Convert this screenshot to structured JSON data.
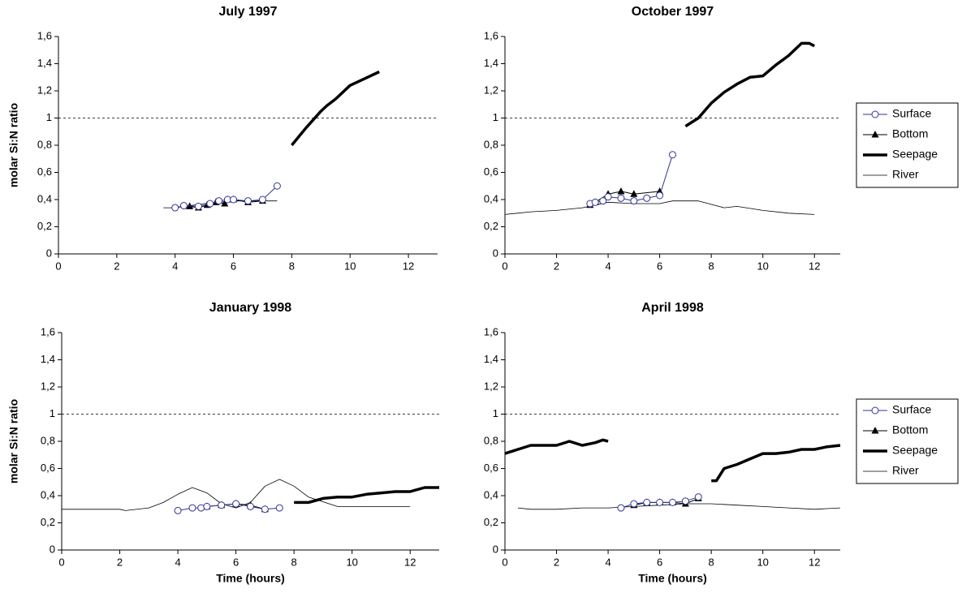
{
  "chart_data": [
    {
      "type": "line",
      "title": "July 1997",
      "y_label": "molar Si:N ratio",
      "xlim": [
        0,
        13
      ],
      "xticks": [
        0,
        2,
        4,
        6,
        8,
        10,
        12
      ],
      "ylim": [
        0,
        1.6
      ],
      "yticks": [
        0,
        {
          "value": 0.2,
          "label": "0,2"
        },
        {
          "value": 0.4,
          "label": "0,4"
        },
        {
          "value": 0.6,
          "label": "0,6"
        },
        {
          "value": 0.8,
          "label": "0,8"
        },
        1,
        {
          "value": 1.2,
          "label": "1,2"
        },
        {
          "value": 1.4,
          "label": "1,4"
        },
        {
          "value": 1.6,
          "label": "1,6"
        }
      ],
      "reference_line": 1,
      "series": [
        {
          "name": "Surface",
          "color": "#333399",
          "marker": "circle",
          "line": "thin",
          "x": [
            4.0,
            4.3,
            4.8,
            5.2,
            5.5,
            5.8,
            6.0,
            6.5,
            7.0,
            7.5
          ],
          "values": [
            0.34,
            0.355,
            0.35,
            0.37,
            0.39,
            0.4,
            0.4,
            0.39,
            0.4,
            0.5
          ]
        },
        {
          "name": "Bottom",
          "color": "#000000",
          "marker": "triangle",
          "line": "thin",
          "x": [
            4.5,
            4.8,
            5.1,
            5.4,
            5.7,
            5.8,
            6.0,
            6.5,
            7.0
          ],
          "values": [
            0.35,
            0.34,
            0.36,
            0.38,
            0.37,
            0.4,
            0.4,
            0.38,
            0.39
          ]
        },
        {
          "name": "Seepage",
          "color": "#000000",
          "marker": "none",
          "line": "thick",
          "x": [
            8.0,
            8.5,
            9.0,
            9.2,
            9.5,
            10.0,
            10.5,
            11.0
          ],
          "values": [
            0.8,
            0.93,
            1.05,
            1.09,
            1.14,
            1.24,
            1.29,
            1.34
          ]
        },
        {
          "name": "River",
          "color": "#000000",
          "marker": "none",
          "line": "hair",
          "x": [
            3.6,
            4.0,
            5.0,
            6.0,
            7.0,
            7.5
          ],
          "values": [
            0.34,
            0.34,
            0.37,
            0.39,
            0.39,
            0.39
          ]
        }
      ]
    },
    {
      "type": "line",
      "title": "October 1997",
      "legend": "right",
      "xlim": [
        0,
        13
      ],
      "xticks": [
        0,
        2,
        4,
        6,
        8,
        10,
        12
      ],
      "ylim": [
        0,
        1.6
      ],
      "yticks": [
        0,
        {
          "value": 0.2,
          "label": "0,2"
        },
        {
          "value": 0.4,
          "label": "0,4"
        },
        {
          "value": 0.6,
          "label": "0,6"
        },
        {
          "value": 0.8,
          "label": "0,8"
        },
        1,
        {
          "value": 1.2,
          "label": "1,2"
        },
        {
          "value": 1.4,
          "label": "1,4"
        },
        {
          "value": 1.6,
          "label": "1,6"
        }
      ],
      "reference_line": 1,
      "series": [
        {
          "name": "Surface",
          "color": "#333399",
          "marker": "circle",
          "line": "thin",
          "x": [
            3.3,
            3.5,
            3.8,
            4.0,
            4.5,
            5.0,
            5.5,
            6.0,
            6.5
          ],
          "values": [
            0.37,
            0.38,
            0.39,
            0.42,
            0.41,
            0.39,
            0.41,
            0.43,
            0.73
          ]
        },
        {
          "name": "Bottom",
          "color": "#000000",
          "marker": "triangle",
          "line": "thin",
          "x": [
            3.3,
            3.5,
            4.0,
            4.5,
            5.0,
            6.0
          ],
          "values": [
            0.36,
            0.38,
            0.44,
            0.46,
            0.44,
            0.46
          ]
        },
        {
          "name": "Seepage",
          "color": "#000000",
          "marker": "none",
          "line": "thick",
          "x": [
            7.0,
            7.5,
            8.0,
            8.5,
            9.0,
            9.5,
            10.0,
            10.5,
            11.0,
            11.5,
            11.8,
            12.0
          ],
          "values": [
            0.94,
            1.0,
            1.11,
            1.19,
            1.25,
            1.3,
            1.31,
            1.39,
            1.46,
            1.55,
            1.55,
            1.53
          ]
        },
        {
          "name": "River",
          "color": "#000000",
          "marker": "none",
          "line": "hair",
          "x": [
            0,
            1,
            2,
            3,
            4,
            5,
            6,
            6.5,
            7.5,
            8.5,
            9,
            10,
            11,
            12
          ],
          "values": [
            0.29,
            0.31,
            0.32,
            0.34,
            0.38,
            0.37,
            0.37,
            0.39,
            0.39,
            0.34,
            0.35,
            0.32,
            0.3,
            0.29
          ]
        }
      ]
    },
    {
      "type": "line",
      "title": "January 1998",
      "y_label": "molar Si:N ratio",
      "x_label": "Time (hours)",
      "xlim": [
        0,
        13
      ],
      "xticks": [
        0,
        2,
        4,
        6,
        8,
        10,
        12
      ],
      "ylim": [
        0,
        1.6
      ],
      "yticks": [
        0,
        {
          "value": 0.2,
          "label": "0,2"
        },
        {
          "value": 0.4,
          "label": "0,4"
        },
        {
          "value": 0.6,
          "label": "0,6"
        },
        {
          "value": 0.8,
          "label": "0,8"
        },
        1,
        {
          "value": 1.2,
          "label": "1,2"
        },
        {
          "value": 1.4,
          "label": "1,4"
        },
        {
          "value": 1.6,
          "label": "1,6"
        }
      ],
      "reference_line": 1,
      "series": [
        {
          "name": "Surface",
          "color": "#333399",
          "marker": "circle",
          "line": "thin",
          "x": [
            4.0,
            4.5,
            4.8,
            5.0,
            5.5,
            6.0,
            6.5,
            7.0,
            7.5
          ],
          "values": [
            0.29,
            0.31,
            0.31,
            0.32,
            0.33,
            0.34,
            0.32,
            0.3,
            0.31
          ]
        },
        {
          "name": "Bottom",
          "color": "#000000",
          "marker": "triangle",
          "line": "thin",
          "x": [
            5.0,
            5.5,
            6.0,
            6.5,
            7.0
          ],
          "values": [
            0.32,
            0.33,
            0.34,
            0.33,
            0.3
          ]
        },
        {
          "name": "Seepage",
          "color": "#000000",
          "marker": "none",
          "line": "thick",
          "x": [
            8.0,
            8.5,
            9.0,
            9.5,
            10.0,
            10.5,
            11.0,
            11.5,
            12.0,
            12.5,
            13.0
          ],
          "values": [
            0.35,
            0.35,
            0.38,
            0.39,
            0.39,
            0.41,
            0.42,
            0.43,
            0.43,
            0.46,
            0.46
          ]
        },
        {
          "name": "River",
          "color": "#000000",
          "marker": "none",
          "line": "hair",
          "x": [
            0,
            1,
            2,
            2.2,
            3,
            3.5,
            4,
            4.5,
            5,
            5.5,
            6,
            6.5,
            7,
            7.5,
            8,
            8.5,
            9.5,
            10,
            12
          ],
          "values": [
            0.3,
            0.3,
            0.3,
            0.29,
            0.31,
            0.35,
            0.41,
            0.46,
            0.42,
            0.34,
            0.31,
            0.35,
            0.47,
            0.52,
            0.47,
            0.39,
            0.32,
            0.32,
            0.32
          ]
        }
      ]
    },
    {
      "type": "line",
      "title": "April 1998",
      "x_label": "Time (hours)",
      "legend": "right",
      "xlim": [
        0,
        13
      ],
      "xticks": [
        0,
        2,
        4,
        6,
        8,
        10,
        12
      ],
      "ylim": [
        0,
        1.6
      ],
      "yticks": [
        0,
        {
          "value": 0.2,
          "label": "0,2"
        },
        {
          "value": 0.4,
          "label": "0,4"
        },
        {
          "value": 0.6,
          "label": "0,6"
        },
        {
          "value": 0.8,
          "label": "0,8"
        },
        1,
        {
          "value": 1.2,
          "label": "1,2"
        },
        {
          "value": 1.4,
          "label": "1,4"
        },
        {
          "value": 1.6,
          "label": "1,6"
        }
      ],
      "reference_line": 1,
      "series": [
        {
          "name": "Surface",
          "color": "#333399",
          "marker": "circle",
          "line": "thin",
          "x": [
            4.5,
            5.0,
            5.5,
            6.0,
            6.5,
            7.0,
            7.5
          ],
          "values": [
            0.31,
            0.34,
            0.35,
            0.35,
            0.35,
            0.36,
            0.39
          ]
        },
        {
          "name": "Bottom",
          "color": "#000000",
          "marker": "triangle",
          "line": "thin",
          "x": [
            5.0,
            5.5,
            6.0,
            6.5,
            7.0,
            7.5
          ],
          "values": [
            0.33,
            0.35,
            0.35,
            0.35,
            0.34,
            0.38
          ]
        },
        {
          "name": "Seepage",
          "color": "#000000",
          "marker": "none",
          "line": "thick",
          "x": [
            0,
            0.5,
            1,
            2,
            2.5,
            3,
            3.5,
            3.8,
            4,
            null,
            8.0,
            8.2,
            8.5,
            9.0,
            9.5,
            10.0,
            10.5,
            11,
            11.5,
            12,
            12.5,
            13
          ],
          "values": [
            0.71,
            0.74,
            0.77,
            0.77,
            0.8,
            0.77,
            0.79,
            0.81,
            0.8,
            null,
            0.51,
            0.51,
            0.6,
            0.63,
            0.67,
            0.71,
            0.71,
            0.72,
            0.74,
            0.74,
            0.76,
            0.77
          ]
        },
        {
          "name": "River",
          "color": "#000000",
          "marker": "none",
          "line": "hair",
          "x": [
            0.5,
            1,
            2,
            3,
            4,
            5,
            6,
            7,
            8,
            9,
            10,
            11,
            12,
            13
          ],
          "values": [
            0.31,
            0.3,
            0.3,
            0.31,
            0.31,
            0.32,
            0.33,
            0.34,
            0.34,
            0.33,
            0.32,
            0.31,
            0.3,
            0.31
          ]
        }
      ]
    }
  ]
}
